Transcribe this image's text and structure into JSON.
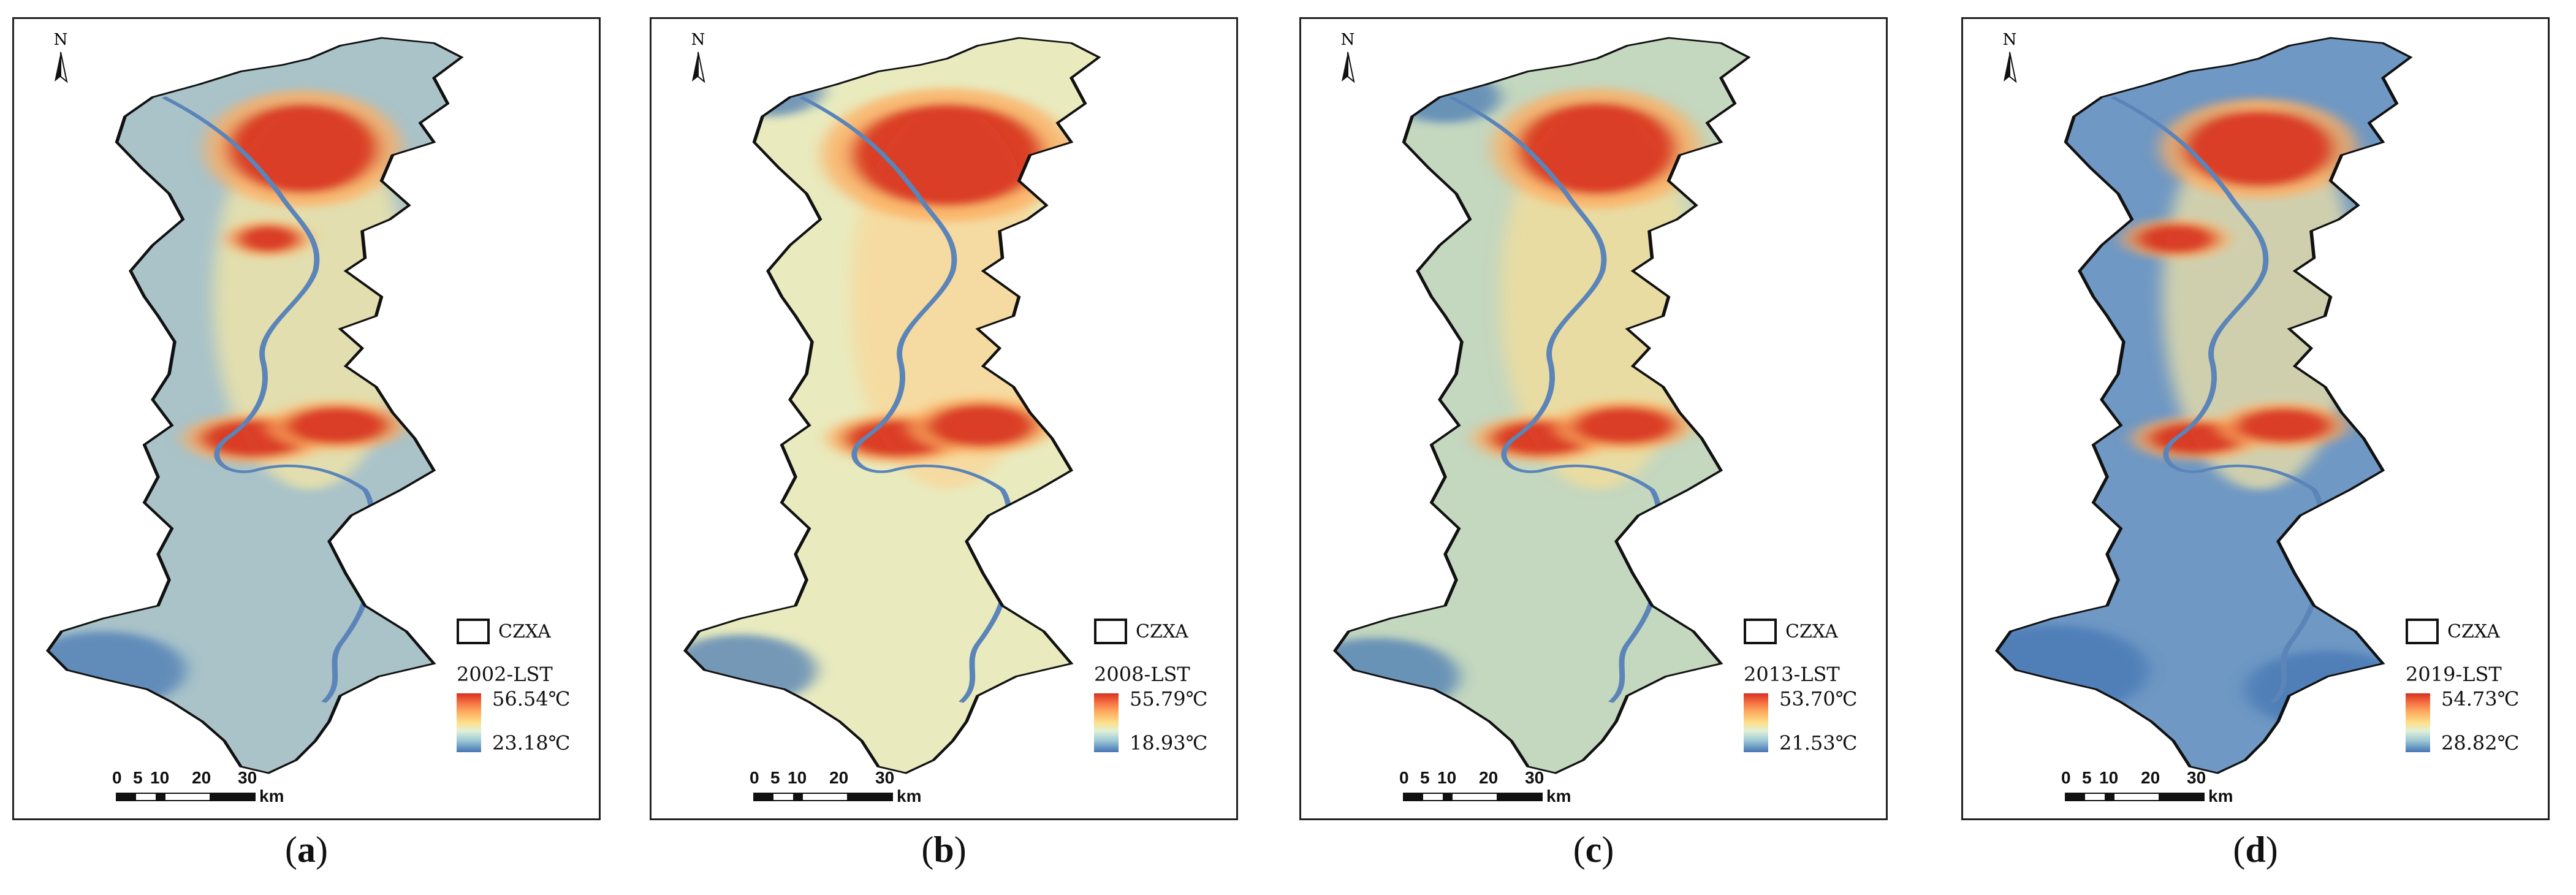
{
  "north_label": "N",
  "legend_boundary_label": "CZXA",
  "scale": {
    "ticks": [
      "0",
      "5",
      "10",
      "20",
      "30"
    ],
    "unit": "km"
  },
  "panels": [
    {
      "caption_letter": "a",
      "title": "2002-LST",
      "max": "56.54℃",
      "min": "23.18℃"
    },
    {
      "caption_letter": "b",
      "title": "2008-LST",
      "max": "55.79℃",
      "min": "18.93℃"
    },
    {
      "caption_letter": "c",
      "title": "2013-LST",
      "max": "53.70℃",
      "min": "21.53℃"
    },
    {
      "caption_letter": "d",
      "title": "2019-LST",
      "max": "54.73℃",
      "min": "28.82℃"
    }
  ],
  "colors": {
    "high": "#d7301f",
    "mid": "#fee08b",
    "low": "#4575b4",
    "river": "#5b84b8",
    "boundary": "#111111"
  }
}
